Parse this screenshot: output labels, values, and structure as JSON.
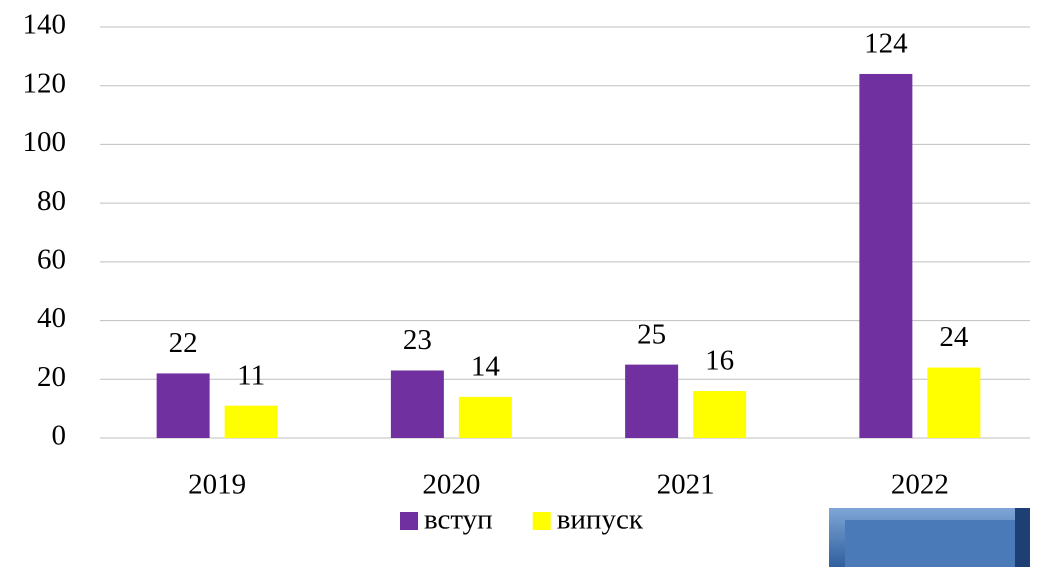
{
  "chart_data": {
    "type": "bar",
    "categories": [
      "2019",
      "2020",
      "2021",
      "2022"
    ],
    "series": [
      {
        "name": "вступ",
        "color": "#7030a0",
        "values": [
          22,
          23,
          25,
          124
        ]
      },
      {
        "name": "випуск",
        "color": "#ffff00",
        "values": [
          11,
          14,
          16,
          24
        ]
      }
    ],
    "ylim": [
      0,
      140
    ],
    "yticks": [
      0,
      20,
      40,
      60,
      80,
      100,
      120,
      140
    ],
    "grid": true,
    "legend": "bottom"
  }
}
